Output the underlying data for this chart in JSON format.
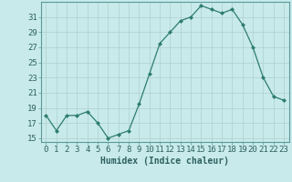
{
  "x": [
    0,
    1,
    2,
    3,
    4,
    5,
    6,
    7,
    8,
    9,
    10,
    11,
    12,
    13,
    14,
    15,
    16,
    17,
    18,
    19,
    20,
    21,
    22,
    23
  ],
  "y": [
    18,
    16,
    18,
    18,
    18.5,
    17,
    15,
    15.5,
    16,
    19.5,
    23.5,
    27.5,
    29,
    30.5,
    31,
    32.5,
    32,
    31.5,
    32,
    30,
    27,
    23,
    20.5,
    20
  ],
  "line_color": "#2e7d6e",
  "bg_color": "#c8eaea",
  "grid_color": "#b0d0d0",
  "xlabel": "Humidex (Indice chaleur)",
  "ylabel_ticks": [
    15,
    17,
    19,
    21,
    23,
    25,
    27,
    29,
    31
  ],
  "ylim": [
    14.5,
    33
  ],
  "xlim": [
    -0.5,
    23.5
  ],
  "xlabel_fontsize": 7,
  "tick_fontsize": 6.5,
  "marker": "D",
  "markersize": 2.0,
  "linewidth": 0.9
}
